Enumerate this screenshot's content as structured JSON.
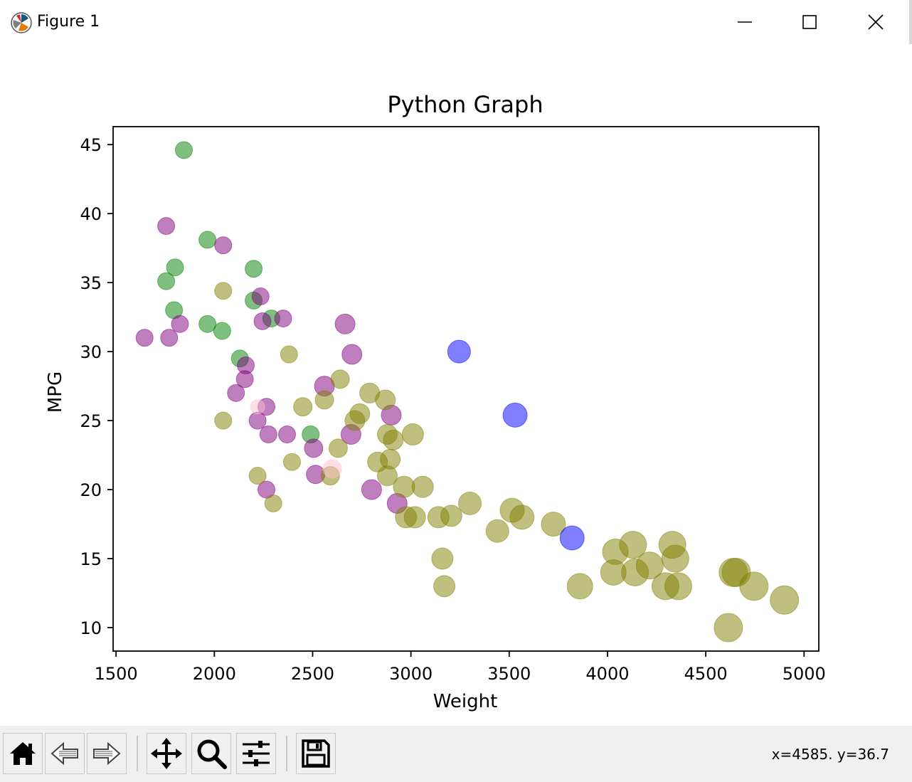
{
  "window": {
    "title": "Figure 1",
    "icon": "matplotlib-icon",
    "controls": [
      "minimize-icon",
      "maximize-icon",
      "close-icon"
    ]
  },
  "toolbar": {
    "buttons": [
      "home-icon",
      "back-arrow-icon",
      "forward-arrow-icon",
      "pan-move-icon",
      "zoom-magnifier-icon",
      "configure-subplots-icon",
      "save-floppy-icon"
    ],
    "coordinates": "x=4585. y=36.7"
  },
  "chart_data": {
    "type": "scatter",
    "title": "Python Graph",
    "xlabel": "Weight",
    "ylabel": "MPG",
    "xlim": [
      1485,
      5075
    ],
    "ylim": [
      8.3,
      46.3
    ],
    "xticks": [
      1500,
      2000,
      2500,
      3000,
      3500,
      4000,
      4500,
      5000
    ],
    "yticks": [
      10,
      15,
      20,
      25,
      30,
      35,
      40,
      45
    ],
    "grid": false,
    "legend": "none",
    "marker_alpha": 0.5,
    "colors": {
      "green": "#008000",
      "purple": "#800080",
      "olive": "#808000",
      "blue": "#0000ff",
      "pink": "#ffc0cb"
    },
    "series": [
      {
        "color": "green",
        "points": [
          [
            1845,
            44.6,
            12
          ],
          [
            1965,
            38.1,
            12
          ],
          [
            1800,
            36.1,
            12
          ],
          [
            2200,
            36.0,
            12
          ],
          [
            1755,
            35.1,
            12
          ],
          [
            2200,
            33.7,
            12
          ],
          [
            1795,
            33.0,
            12
          ],
          [
            2290,
            32.4,
            12
          ],
          [
            1965,
            32.0,
            12
          ],
          [
            2040,
            31.5,
            12
          ],
          [
            2130,
            29.5,
            12
          ],
          [
            2490,
            24.0,
            12
          ]
        ]
      },
      {
        "color": "purple",
        "points": [
          [
            1755,
            39.1,
            12
          ],
          [
            2045,
            37.7,
            12
          ],
          [
            2235,
            34.0,
            12
          ],
          [
            2245,
            32.2,
            12
          ],
          [
            1825,
            32.0,
            12
          ],
          [
            2350,
            32.4,
            12
          ],
          [
            2665,
            32.0,
            14
          ],
          [
            1645,
            31.0,
            12
          ],
          [
            1770,
            31.0,
            12
          ],
          [
            2700,
            29.8,
            14
          ],
          [
            2160,
            29.0,
            12
          ],
          [
            2155,
            28.0,
            12
          ],
          [
            2110,
            27.0,
            12
          ],
          [
            2560,
            27.5,
            14
          ],
          [
            2265,
            26.0,
            12
          ],
          [
            2220,
            25.0,
            12
          ],
          [
            2900,
            25.4,
            14
          ],
          [
            2275,
            24.0,
            12
          ],
          [
            2370,
            24.0,
            12
          ],
          [
            2695,
            24.0,
            14
          ],
          [
            2505,
            23.0,
            13
          ],
          [
            2515,
            21.1,
            13
          ],
          [
            2265,
            20.0,
            12
          ],
          [
            2800,
            20.0,
            14
          ],
          [
            2930,
            19.0,
            14
          ]
        ]
      },
      {
        "color": "olive",
        "points": [
          [
            2045,
            34.4,
            12
          ],
          [
            2380,
            29.8,
            12
          ],
          [
            2640,
            28.0,
            13
          ],
          [
            2560,
            26.5,
            13
          ],
          [
            2450,
            26.0,
            13
          ],
          [
            2045,
            25.0,
            12
          ],
          [
            2790,
            27.0,
            14
          ],
          [
            2870,
            26.5,
            14
          ],
          [
            2740,
            25.5,
            14
          ],
          [
            2715,
            25.0,
            14
          ],
          [
            2880,
            24.0,
            14
          ],
          [
            2910,
            23.6,
            14
          ],
          [
            3010,
            24.0,
            15
          ],
          [
            2630,
            23.0,
            13
          ],
          [
            2395,
            22.0,
            12
          ],
          [
            2830,
            22.0,
            14
          ],
          [
            2895,
            22.2,
            14
          ],
          [
            2220,
            21.0,
            12
          ],
          [
            2590,
            21.0,
            13
          ],
          [
            2880,
            21.0,
            14
          ],
          [
            2965,
            20.2,
            15
          ],
          [
            3060,
            20.2,
            15
          ],
          [
            2300,
            19.0,
            12
          ],
          [
            2975,
            18.0,
            15
          ],
          [
            3020,
            18.0,
            15
          ],
          [
            3140,
            18.0,
            15
          ],
          [
            3205,
            18.1,
            15
          ],
          [
            3300,
            19.0,
            16
          ],
          [
            3515,
            18.5,
            17
          ],
          [
            3565,
            18.0,
            17
          ],
          [
            3440,
            17.0,
            16
          ],
          [
            3725,
            17.5,
            17
          ],
          [
            3160,
            15.0,
            15
          ],
          [
            3170,
            13.0,
            15
          ],
          [
            3860,
            13.0,
            18
          ],
          [
            4040,
            15.5,
            18
          ],
          [
            4130,
            16.0,
            19
          ],
          [
            4030,
            14.0,
            18
          ],
          [
            4140,
            14.0,
            19
          ],
          [
            4215,
            14.5,
            19
          ],
          [
            4330,
            16.0,
            19
          ],
          [
            4345,
            15.0,
            19
          ],
          [
            4295,
            13.0,
            19
          ],
          [
            4360,
            13.0,
            19
          ],
          [
            4640,
            14.0,
            20
          ],
          [
            4655,
            14.0,
            20
          ],
          [
            4615,
            10.0,
            20
          ],
          [
            4745,
            13.0,
            20
          ],
          [
            4900,
            12.0,
            20
          ]
        ]
      },
      {
        "color": "blue",
        "points": [
          [
            3245,
            30.0,
            16
          ],
          [
            3530,
            25.4,
            17
          ],
          [
            3820,
            16.5,
            17
          ]
        ]
      },
      {
        "color": "pink",
        "points": [
          [
            2220,
            26.0,
            10
          ],
          [
            2600,
            21.5,
            13
          ]
        ]
      }
    ]
  }
}
